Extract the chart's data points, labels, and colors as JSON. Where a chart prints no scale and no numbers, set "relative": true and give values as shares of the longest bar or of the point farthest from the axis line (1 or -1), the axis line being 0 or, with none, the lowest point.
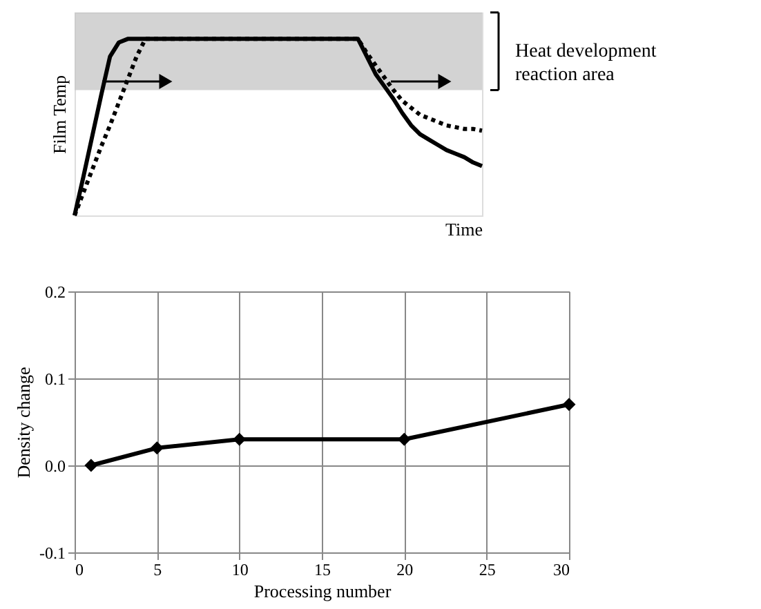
{
  "chart_data": [
    {
      "type": "line",
      "relative": true,
      "xlabel": "Time",
      "ylabel": "Film Temp",
      "categories": [
        null,
        null,
        null,
        null,
        null,
        null,
        null,
        null,
        null,
        null,
        null,
        null,
        null,
        null,
        null,
        null,
        null,
        null,
        null,
        null,
        null,
        null,
        null,
        null,
        null,
        null,
        null,
        null,
        null,
        null,
        null,
        null,
        null,
        null,
        null,
        null,
        null,
        null,
        null,
        null,
        null,
        null,
        null,
        null,
        null,
        null,
        null
      ],
      "series": [
        {
          "color": "#000000",
          "line_style": "solid",
          "values": [
            0,
            0.22,
            0.45,
            0.68,
            0.9,
            0.98,
            1,
            1,
            1,
            1,
            1,
            1,
            1,
            1,
            1,
            1,
            1,
            1,
            1,
            1,
            1,
            1,
            1,
            1,
            1,
            1,
            1,
            1,
            1,
            1,
            1,
            1,
            1,
            0.9,
            0.8,
            0.73,
            0.66,
            0.58,
            0.51,
            0.46,
            0.43,
            0.4,
            0.37,
            0.35,
            0.33,
            0.3,
            0.28
          ]
        },
        {
          "color": "#000000",
          "line_style": "dotted",
          "values": [
            0,
            0.13,
            0.26,
            0.39,
            0.51,
            0.64,
            0.77,
            0.9,
            1,
            1,
            1,
            1,
            1,
            1,
            1,
            1,
            1,
            1,
            1,
            1,
            1,
            1,
            1,
            1,
            1,
            1,
            1,
            1,
            1,
            1,
            1,
            1,
            1,
            0.92,
            0.85,
            0.78,
            0.71,
            0.65,
            0.61,
            0.57,
            0.55,
            0.53,
            0.51,
            0.5,
            0.49,
            0.49,
            0.48
          ]
        }
      ],
      "bands": [
        {
          "axis": "y",
          "from": 0.71,
          "to": 1.15,
          "label": "Heat development reaction area",
          "color": "#c8c8c8"
        }
      ],
      "grid": false,
      "marker": "none"
    },
    {
      "type": "line",
      "xlabel": "Processing number",
      "ylabel": "Density change",
      "x": [
        1,
        5,
        10,
        20,
        30
      ],
      "series": [
        {
          "color": "#000000",
          "values": [
            0,
            0.02,
            0.03,
            0.03,
            0.07
          ]
        }
      ],
      "xlim": [
        0,
        30
      ],
      "xticks": [
        0,
        5,
        10,
        15,
        20,
        25,
        30
      ],
      "ylim": [
        -0.1,
        0.2
      ],
      "yticks": [
        -0.1,
        {
          "value": 0,
          "label": "0.0"
        },
        0.1,
        0.2
      ],
      "grid": true,
      "marker": "diamond",
      "line_style": "solid"
    }
  ]
}
